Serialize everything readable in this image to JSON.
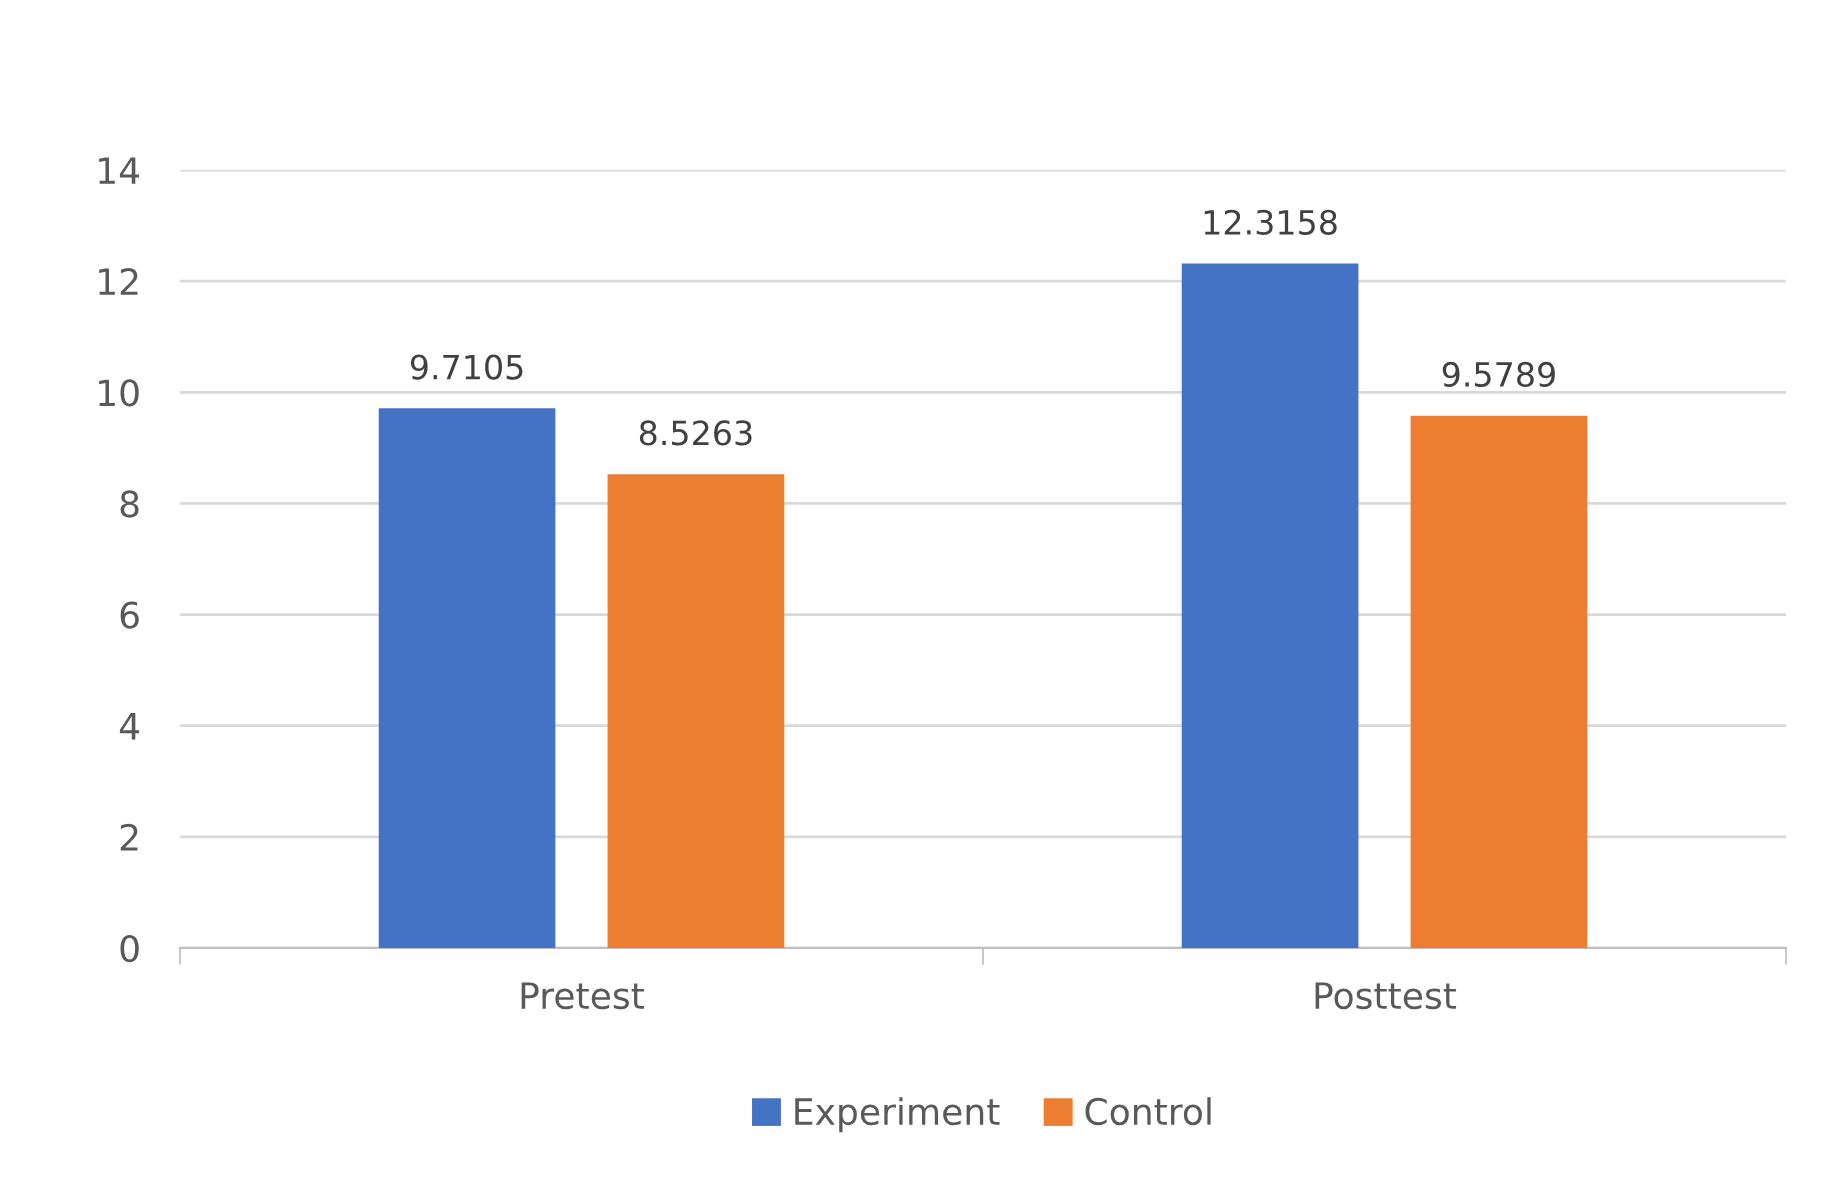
{
  "chart_data": {
    "type": "bar",
    "categories": [
      "Pretest",
      "Posttest"
    ],
    "series": [
      {
        "name": "Experiment",
        "color": "#4472c4",
        "values": [
          9.7105,
          12.3158
        ]
      },
      {
        "name": "Control",
        "color": "#ed7d31",
        "values": [
          8.5263,
          9.5789
        ]
      }
    ],
    "ylim": [
      0,
      14
    ],
    "yticks": [
      0,
      2,
      4,
      6,
      8,
      10,
      12,
      14
    ],
    "grid": "y",
    "legend": "bottom",
    "data_labels": true
  }
}
